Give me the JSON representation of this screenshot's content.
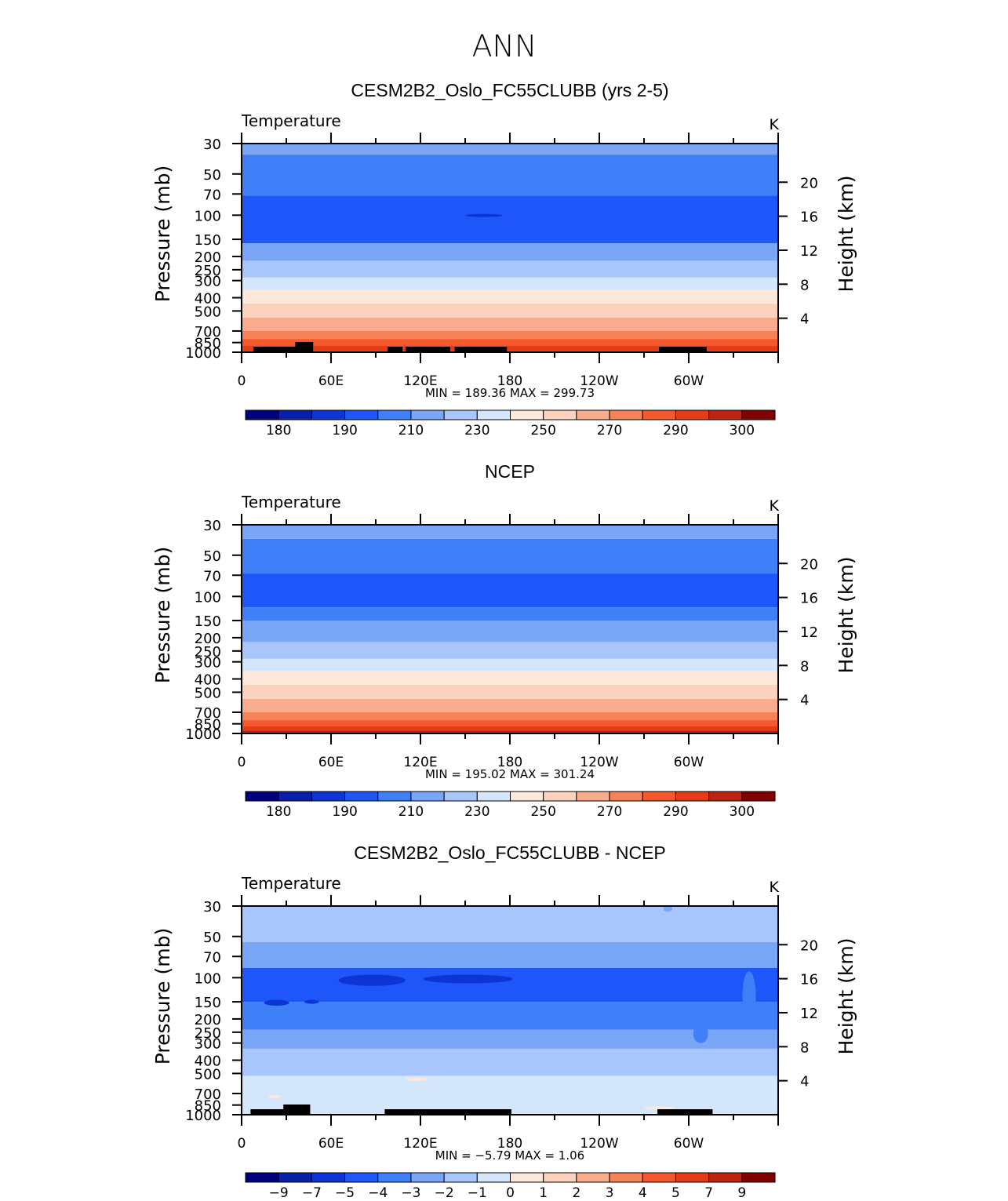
{
  "figure_title": "ANN",
  "colors": {
    "abs_scale": [
      "#00007f",
      "#0a1fa8",
      "#0d35d6",
      "#1e56fa",
      "#3f7ff8",
      "#7aa6f8",
      "#a8c6fb",
      "#d3e6fc",
      "#fde9d9",
      "#fcd2bd",
      "#f9ac8d",
      "#f68258",
      "#f4582c",
      "#e53b16",
      "#bd2510",
      "#800000"
    ],
    "diff_scale": [
      "#00007f",
      "#0a1fa8",
      "#0d35d6",
      "#1e56fa",
      "#3f7ff8",
      "#7aa6f8",
      "#a8c6fb",
      "#d3e6fc",
      "#fde9d9",
      "#fcd2bd",
      "#f9ac8d",
      "#f68258",
      "#f4582c",
      "#e53b16",
      "#bd2510",
      "#800000"
    ],
    "terrain": "#000000"
  },
  "chart_data": [
    {
      "type": "heatmap",
      "title": "CESM2B2_Oslo_FC55CLUBB (yrs 2-5)",
      "variable_label": "Temperature",
      "units": "K",
      "ylabel": "Pressure (mb)",
      "y2label": "Height (km)",
      "pressure_ticks": [
        30,
        50,
        70,
        100,
        150,
        200,
        250,
        300,
        400,
        500,
        700,
        850,
        1000
      ],
      "height_ticks": [
        20,
        16,
        12,
        8,
        4
      ],
      "x_ticks": [
        "0",
        "60E",
        "120E",
        "180",
        "120W",
        "60W"
      ],
      "xlim": [
        0,
        360
      ],
      "ylim": [
        1000,
        30
      ],
      "stats": "MIN = 189.36   MAX = 299.73",
      "colorbar_labels": [
        "180",
        "190",
        "210",
        "230",
        "250",
        "270",
        "290",
        "300"
      ],
      "layers": [
        {
          "p": [
            1000,
            900
          ],
          "c": 13
        },
        {
          "p": [
            900,
            800
          ],
          "c": 12
        },
        {
          "p": [
            800,
            700
          ],
          "c": 11
        },
        {
          "p": [
            700,
            560
          ],
          "c": 10
        },
        {
          "p": [
            560,
            440
          ],
          "c": 9
        },
        {
          "p": [
            440,
            350
          ],
          "c": 8
        },
        {
          "p": [
            350,
            285
          ],
          "c": 7
        },
        {
          "p": [
            285,
            215
          ],
          "c": 6
        },
        {
          "p": [
            215,
            160
          ],
          "c": 5
        },
        {
          "p": [
            160,
            72
          ],
          "c": 3
        },
        {
          "p": [
            72,
            36
          ],
          "c": 4
        },
        {
          "p": [
            36,
            30
          ],
          "c": 5
        }
      ],
      "patches": [
        {
          "lon": [
            150,
            175
          ],
          "p": [
            103,
            98
          ],
          "c": 2
        }
      ],
      "terrain": [
        [
          8,
          42
        ],
        [
          36,
          48
        ],
        [
          98,
          108
        ],
        [
          110,
          140
        ],
        [
          143,
          178
        ],
        [
          280,
          312
        ]
      ]
    },
    {
      "type": "heatmap",
      "title": "NCEP",
      "variable_label": "Temperature",
      "units": "K",
      "ylabel": "Pressure (mb)",
      "y2label": "Height (km)",
      "pressure_ticks": [
        30,
        50,
        70,
        100,
        150,
        200,
        250,
        300,
        400,
        500,
        700,
        850,
        1000
      ],
      "height_ticks": [
        20,
        16,
        12,
        8,
        4
      ],
      "x_ticks": [
        "0",
        "60E",
        "120E",
        "180",
        "120W",
        "60W"
      ],
      "xlim": [
        0,
        360
      ],
      "ylim": [
        1000,
        30
      ],
      "stats": "MIN = 195.02   MAX = 301.24",
      "colorbar_labels": [
        "180",
        "190",
        "210",
        "230",
        "250",
        "270",
        "290",
        "300"
      ],
      "layers": [
        {
          "p": [
            1000,
            950
          ],
          "c": 14
        },
        {
          "p": [
            950,
            880
          ],
          "c": 13
        },
        {
          "p": [
            880,
            800
          ],
          "c": 12
        },
        {
          "p": [
            800,
            700
          ],
          "c": 11
        },
        {
          "p": [
            700,
            560
          ],
          "c": 10
        },
        {
          "p": [
            560,
            440
          ],
          "c": 9
        },
        {
          "p": [
            440,
            350
          ],
          "c": 8
        },
        {
          "p": [
            350,
            285
          ],
          "c": 7
        },
        {
          "p": [
            285,
            215
          ],
          "c": 6
        },
        {
          "p": [
            215,
            150
          ],
          "c": 5
        },
        {
          "p": [
            150,
            120
          ],
          "c": 4
        },
        {
          "p": [
            120,
            68
          ],
          "c": 3
        },
        {
          "p": [
            68,
            38
          ],
          "c": 4
        },
        {
          "p": [
            38,
            30
          ],
          "c": 5
        }
      ],
      "patches": [],
      "terrain": []
    },
    {
      "type": "heatmap",
      "title": "CESM2B2_Oslo_FC55CLUBB - NCEP",
      "variable_label": "Temperature",
      "units": "K",
      "ylabel": "Pressure (mb)",
      "y2label": "Height (km)",
      "pressure_ticks": [
        30,
        50,
        70,
        100,
        150,
        200,
        250,
        300,
        400,
        500,
        700,
        850,
        1000
      ],
      "height_ticks": [
        20,
        16,
        12,
        8,
        4
      ],
      "x_ticks": [
        "0",
        "60E",
        "120E",
        "180",
        "120W",
        "60W"
      ],
      "xlim": [
        0,
        360
      ],
      "ylim": [
        1000,
        30
      ],
      "stats": "MIN =   −5.79   MAX =   1.06",
      "colorbar_labels": [
        "−9",
        "−7",
        "−5",
        "−4",
        "−3",
        "−2",
        "−1",
        "0",
        "1",
        "2",
        "3",
        "4",
        "5",
        "7",
        "9"
      ],
      "layers": [
        {
          "p": [
            1000,
            520
          ],
          "c": 7
        },
        {
          "p": [
            520,
            330
          ],
          "c": 6
        },
        {
          "p": [
            330,
            240
          ],
          "c": 5
        },
        {
          "p": [
            240,
            150
          ],
          "c": 4
        },
        {
          "p": [
            150,
            85
          ],
          "c": 3
        },
        {
          "p": [
            85,
            55
          ],
          "c": 5
        },
        {
          "p": [
            55,
            30
          ],
          "c": 6
        }
      ],
      "patches": [
        {
          "lon": [
            65,
            110
          ],
          "p": [
            115,
            95
          ],
          "c": 2
        },
        {
          "lon": [
            122,
            182
          ],
          "p": [
            110,
            95
          ],
          "c": 2
        },
        {
          "lon": [
            15,
            32
          ],
          "p": [
            160,
            145
          ],
          "c": 2
        },
        {
          "lon": [
            42,
            52
          ],
          "p": [
            155,
            145
          ],
          "c": 2
        },
        {
          "lon": [
            270,
            290
          ],
          "p": [
            920,
            870
          ],
          "c": 8
        },
        {
          "lon": [
            18,
            26
          ],
          "p": [
            760,
            720
          ],
          "c": 8
        },
        {
          "lon": [
            110,
            125
          ],
          "p": [
            560,
            540
          ],
          "c": 8
        },
        {
          "lon": [
            336,
            345
          ],
          "p": [
            200,
            90
          ],
          "c": 4
        },
        {
          "lon": [
            303,
            313
          ],
          "p": [
            300,
            220
          ],
          "c": 4
        },
        {
          "lon": [
            283,
            289
          ],
          "p": [
            33,
            30
          ],
          "c": 5
        }
      ],
      "terrain": [
        [
          6,
          30
        ],
        [
          28,
          46
        ],
        [
          96,
          181
        ],
        [
          279,
          316
        ]
      ]
    }
  ]
}
